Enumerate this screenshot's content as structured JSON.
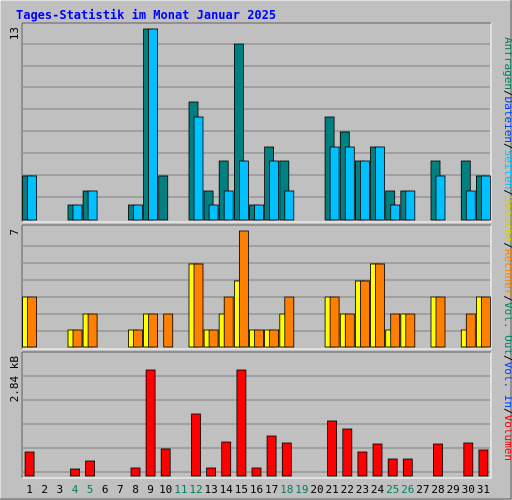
{
  "chart_data": {
    "type": "bar",
    "title": "Tages-Statistik im Monat Januar 2025",
    "x": [
      "1",
      "2",
      "3",
      "4",
      "5",
      "6",
      "7",
      "8",
      "9",
      "10",
      "11",
      "12",
      "13",
      "14",
      "15",
      "16",
      "17",
      "18",
      "19",
      "20",
      "21",
      "22",
      "23",
      "24",
      "25",
      "26",
      "27",
      "28",
      "29",
      "30",
      "31"
    ],
    "weekend_days": [
      "4",
      "5",
      "11",
      "12",
      "18",
      "19",
      "25",
      "26"
    ],
    "panels": [
      {
        "id": "top",
        "ymax_label": "13",
        "ylim": [
          0,
          13
        ],
        "series": [
          {
            "name": "Anfragen",
            "color": "#008080",
            "values": [
              3,
              0,
              0,
              1,
              2,
              0,
              0,
              1,
              13,
              3,
              0,
              8,
              2,
              4,
              12,
              1,
              5,
              4,
              0,
              0,
              7,
              6,
              4,
              5,
              2,
              2,
              0,
              4,
              0,
              4,
              3
            ]
          },
          {
            "name": "Dateien",
            "color": "#00c0ff",
            "values": [
              3,
              0,
              0,
              1,
              2,
              0,
              0,
              1,
              13,
              0,
              0,
              7,
              1,
              2,
              4,
              1,
              4,
              2,
              0,
              0,
              5,
              5,
              4,
              5,
              1,
              2,
              0,
              3,
              0,
              2,
              3
            ]
          },
          {
            "name": "Seiten",
            "color": "#00e0e0",
            "values": [
              0,
              0,
              0,
              0,
              0,
              0,
              0,
              0,
              0,
              0,
              0,
              0,
              0,
              0,
              0,
              0,
              0,
              0,
              0,
              0,
              0,
              0,
              0,
              0,
              0,
              0,
              0,
              0,
              0,
              0,
              0
            ]
          }
        ]
      },
      {
        "id": "middle",
        "ymax_label": "7",
        "ylim": [
          0,
          7
        ],
        "series": [
          {
            "name": "Besuche",
            "color": "#ffff00",
            "values": [
              3,
              0,
              0,
              1,
              2,
              0,
              0,
              1,
              2,
              0,
              0,
              5,
              1,
              2,
              4,
              1,
              1,
              2,
              0,
              0,
              3,
              2,
              4,
              5,
              1,
              2,
              0,
              3,
              0,
              1,
              3
            ]
          },
          {
            "name": "Rechner",
            "color": "#ff8000",
            "values": [
              3,
              0,
              0,
              1,
              2,
              0,
              0,
              1,
              2,
              2,
              0,
              5,
              1,
              3,
              7,
              1,
              1,
              3,
              0,
              0,
              3,
              2,
              4,
              5,
              2,
              2,
              0,
              3,
              0,
              2,
              3
            ]
          }
        ]
      },
      {
        "id": "bottom",
        "ymax_label": "2.84 kB",
        "ylim": [
          0,
          3.15
        ],
        "series": [
          {
            "name": "Volumen",
            "color": "#ff0000",
            "values": [
              0.64,
              0,
              0,
              0.2,
              0.41,
              0,
              0,
              0.22,
              2.84,
              0.72,
              0,
              1.65,
              0.21,
              0.9,
              2.82,
              0.22,
              1.07,
              0.88,
              0,
              0,
              1.48,
              1.26,
              0.64,
              0.85,
              0.45,
              0.45,
              0,
              0.85,
              0,
              0.87,
              0.7
            ]
          }
        ]
      }
    ],
    "side_label": {
      "top_group": [
        {
          "text": "Anfragen",
          "color": "#008060"
        },
        {
          "text": "/",
          "color": "#000000"
        },
        {
          "text": "Dateien",
          "color": "#0040ff"
        },
        {
          "text": "/",
          "color": "#000000"
        },
        {
          "text": "Seiten",
          "color": "#00c0ff"
        },
        {
          "text": "/",
          "color": "#000000"
        },
        {
          "text": "Besuche",
          "color": "#d0d000"
        }
      ],
      "bottom_group": [
        {
          "text": "/",
          "color": "#000000"
        },
        {
          "text": "Rechner",
          "color": "#ff8000"
        },
        {
          "text": "/",
          "color": "#000000"
        },
        {
          "text": "Vol. Out",
          "color": "#008060"
        },
        {
          "text": "/",
          "color": "#000000"
        },
        {
          "text": "Vol. In",
          "color": "#0040ff"
        },
        {
          "text": "/",
          "color": "#000000"
        },
        {
          "text": "Volumen",
          "color": "#ff0000"
        }
      ]
    }
  }
}
